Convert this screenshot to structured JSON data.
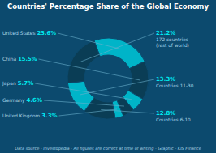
{
  "chart_data": {
    "type": "pie",
    "title": "Countries' Percentage Share of the Global Economy",
    "categories": [
      "United States",
      "China",
      "Japan",
      "Germany",
      "United Kingdom",
      "Countries 6-10",
      "Countries 11-30",
      "172 countries"
    ],
    "values": [
      23.6,
      15.5,
      5.7,
      4.6,
      3.3,
      12.8,
      13.3,
      21.2
    ],
    "value_labels": [
      "23.6%",
      "15.5%",
      "5.7%",
      "4.6%",
      "3.3%",
      "12.8%",
      "13.3%",
      "21.2%"
    ],
    "colors": [
      "#00b4c8",
      "#0a3d55",
      "#00b4c8",
      "#0a3d55",
      "#00b4c8",
      "#0a3d55",
      "#00b4c8",
      "#0a3d55"
    ],
    "data_labels": true,
    "annotations": [
      "(rest of world)",
      "Data source - Investopedia - All figures are correct at time of writing - Graphic - KIS Finance"
    ]
  }
}
